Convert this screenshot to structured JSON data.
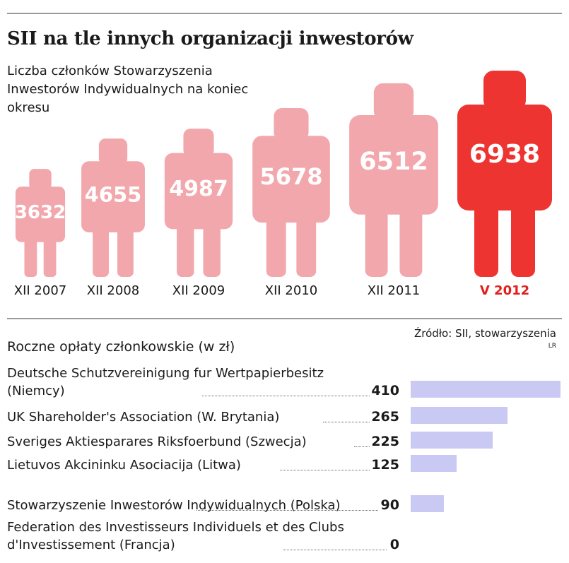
{
  "title": "SII na tle innych organizacji inwestorów",
  "subtitle": "Liczba członków Stowarzyszenia Inwestorów Indywidualnych na koniec okresu",
  "colors": {
    "person": "#f2a7ad",
    "person_highlight": "#ee3431",
    "fee_bar": "#c9c9f3",
    "highlight_text": "#e0201c"
  },
  "source": "Źródło: SII, stowarzyszenia",
  "credit": "LR",
  "fees_title": "Roczne opłaty członkowskie (w zł)",
  "chart_data": [
    {
      "type": "bar",
      "title": "SII na tle innych organizacji inwestorów",
      "subtitle": "Liczba członków Stowarzyszenia Inwestorów Indywidualnych na koniec okresu",
      "mark": "person-pictogram",
      "categories": [
        "XII 2007",
        "XII 2008",
        "XII 2009",
        "XII 2010",
        "XII 2011",
        "V 2012"
      ],
      "values": [
        3632,
        4655,
        4987,
        5678,
        6512,
        6938
      ],
      "labels": [
        "3632",
        "4655",
        "4987",
        "5678",
        "6512",
        "6938"
      ],
      "highlight": "V 2012"
    },
    {
      "type": "bar",
      "orientation": "horizontal",
      "title": "Roczne opłaty członkowskie (w zł)",
      "categories": [
        "Deutsche Schutzvereinigung fur Wertpapierbesitz (Niemcy)",
        "UK Shareholder's Association (W. Brytania)",
        "Sveriges Aktiesparares Riksfoerbund (Szwecja)",
        "Lietuvos Akcininku Asociacija (Litwa)",
        "Stowarzyszenie Inwestorów Indywidualnych (Polska)",
        "Federation des Investisseurs Individuels et des Clubs d'Investissement (Francja)"
      ],
      "values": [
        410,
        265,
        225,
        125,
        90,
        0
      ],
      "labels": [
        "410",
        "265",
        "225",
        "125",
        "90",
        "0"
      ]
    }
  ]
}
